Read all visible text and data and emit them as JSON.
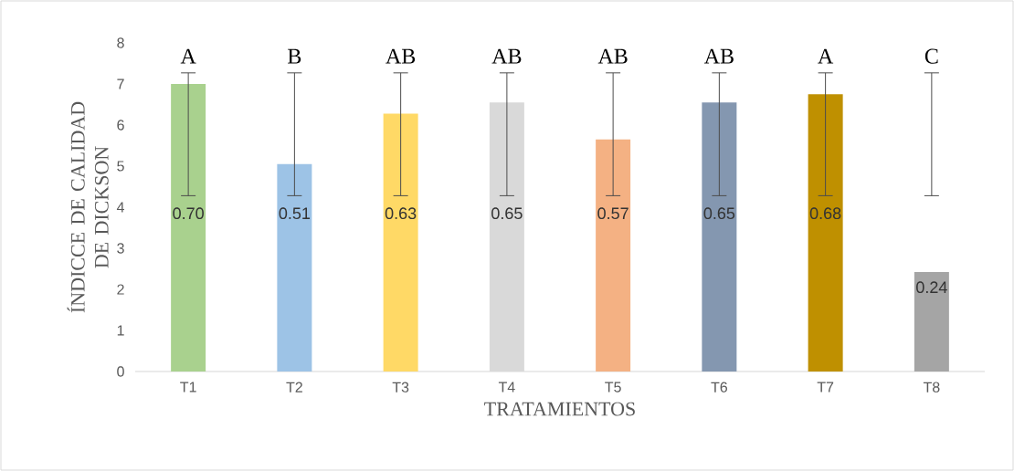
{
  "chart_data": {
    "type": "bar",
    "xlabel": "TRATAMIENTOS",
    "ylabel": "ÍNDICCE DE CALIDAD DE DICKSON",
    "categories": [
      "T1",
      "T2",
      "T3",
      "T4",
      "T5",
      "T6",
      "T7",
      "T8"
    ],
    "values": [
      7.0,
      5.05,
      6.28,
      6.55,
      5.65,
      6.55,
      6.75,
      2.42
    ],
    "colors": [
      "#a9d18e",
      "#9dc3e6",
      "#ffd966",
      "#d9d9d9",
      "#f4b183",
      "#8497b0",
      "#bf9000",
      "#a5a5a5"
    ],
    "errors": [
      [
        4.28,
        7.27
      ],
      [
        4.28,
        7.27
      ],
      [
        4.28,
        7.27
      ],
      [
        4.28,
        7.27
      ],
      [
        4.28,
        7.27
      ],
      [
        4.28,
        7.27
      ],
      [
        4.28,
        7.27
      ],
      [
        4.28,
        7.27
      ]
    ],
    "annotations": [
      "A",
      "B",
      "AB",
      "AB",
      "AB",
      "AB",
      "A",
      "C",
      "0.70",
      "0.51",
      "0.63",
      "0.65",
      "0.57",
      "0.65",
      "0.68",
      "0.24"
    ],
    "ylim": [
      0,
      8
    ],
    "yticks": [
      0,
      1,
      2,
      3,
      4,
      5,
      6,
      7,
      8
    ]
  }
}
